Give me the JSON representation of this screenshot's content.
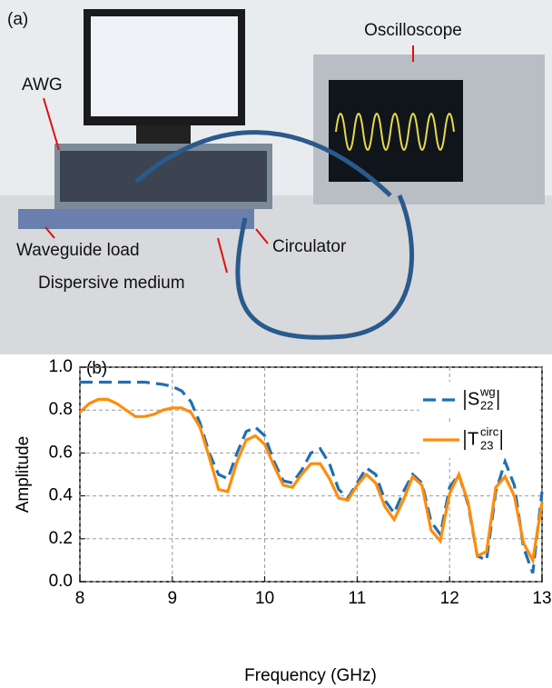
{
  "panel_a": {
    "label": "(a)",
    "oscilloscope": "Oscilloscope",
    "awg": "AWG",
    "waveguide_load": "Waveguide load",
    "circulator": "Circulator",
    "dispersive_medium": "Dispersive medium"
  },
  "chart_data": {
    "type": "line",
    "panel_label": "(b)",
    "x_label": "Frequency (GHz)",
    "y_label": "Amplitude",
    "x": [
      8.0,
      8.1,
      8.2,
      8.3,
      8.4,
      8.5,
      8.6,
      8.7,
      8.8,
      8.9,
      9.0,
      9.1,
      9.2,
      9.3,
      9.4,
      9.5,
      9.6,
      9.7,
      9.8,
      9.9,
      10.0,
      10.1,
      10.2,
      10.3,
      10.4,
      10.5,
      10.6,
      10.7,
      10.8,
      10.9,
      11.0,
      11.1,
      11.2,
      11.3,
      11.4,
      11.5,
      11.6,
      11.7,
      11.8,
      11.9,
      12.0,
      12.1,
      12.2,
      12.3,
      12.4,
      12.5,
      12.6,
      12.7,
      12.8,
      12.9,
      13.0
    ],
    "series": [
      {
        "name": {
          "base": "S",
          "sub": "22",
          "sup": "wg"
        },
        "color": "#1f6fb4",
        "dash": true,
        "values": [
          0.93,
          0.93,
          0.93,
          0.93,
          0.93,
          0.93,
          0.93,
          0.93,
          0.925,
          0.92,
          0.91,
          0.89,
          0.84,
          0.74,
          0.6,
          0.5,
          0.48,
          0.6,
          0.7,
          0.72,
          0.68,
          0.56,
          0.47,
          0.46,
          0.52,
          0.6,
          0.62,
          0.55,
          0.43,
          0.39,
          0.46,
          0.53,
          0.5,
          0.38,
          0.32,
          0.42,
          0.5,
          0.46,
          0.28,
          0.22,
          0.44,
          0.5,
          0.36,
          0.12,
          0.1,
          0.42,
          0.56,
          0.45,
          0.16,
          0.04,
          0.42
        ]
      },
      {
        "name": {
          "base": "T",
          "sub": "23",
          "sup": "circ"
        },
        "color": "#ff8c0a",
        "dash": false,
        "values": [
          0.79,
          0.83,
          0.85,
          0.85,
          0.83,
          0.8,
          0.77,
          0.77,
          0.78,
          0.8,
          0.81,
          0.81,
          0.79,
          0.72,
          0.58,
          0.43,
          0.42,
          0.56,
          0.66,
          0.68,
          0.64,
          0.54,
          0.45,
          0.44,
          0.5,
          0.55,
          0.55,
          0.48,
          0.39,
          0.38,
          0.45,
          0.5,
          0.46,
          0.35,
          0.29,
          0.38,
          0.49,
          0.45,
          0.24,
          0.19,
          0.41,
          0.5,
          0.37,
          0.12,
          0.14,
          0.44,
          0.49,
          0.4,
          0.18,
          0.1,
          0.37
        ]
      }
    ],
    "xlim": [
      8,
      13
    ],
    "xticks": [
      8,
      9,
      10,
      11,
      12,
      13
    ],
    "ylim": [
      0,
      1
    ],
    "yticks": [
      {
        "value": 0,
        "label": "0.0"
      },
      0.2,
      0.4,
      0.6,
      0.8,
      {
        "value": 1,
        "label": "1.0"
      }
    ],
    "grid": true
  }
}
